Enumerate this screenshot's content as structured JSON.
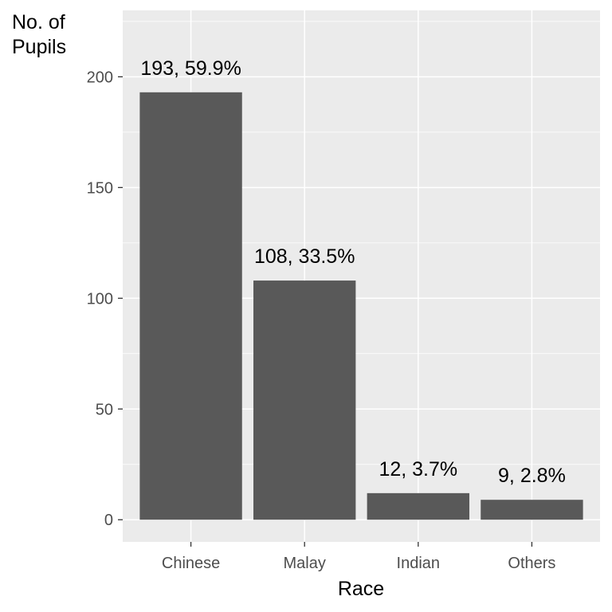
{
  "chart_data": {
    "type": "bar",
    "categories": [
      "Chinese",
      "Malay",
      "Indian",
      "Others"
    ],
    "values": [
      193,
      108,
      12,
      9
    ],
    "data_labels": [
      "193, 59.9%",
      "108, 33.5%",
      "12, 3.7%",
      "9, 2.8%"
    ],
    "xlabel": "Race",
    "ylabel_lines": [
      "No. of",
      "Pupils"
    ],
    "yticks": [
      0,
      50,
      100,
      150,
      200
    ],
    "ylim": [
      -10,
      230
    ],
    "grid": true,
    "colors": {
      "panel": "#ebebeb",
      "grid": "#ffffff",
      "bar": "#595959",
      "tick": "#333333"
    }
  }
}
